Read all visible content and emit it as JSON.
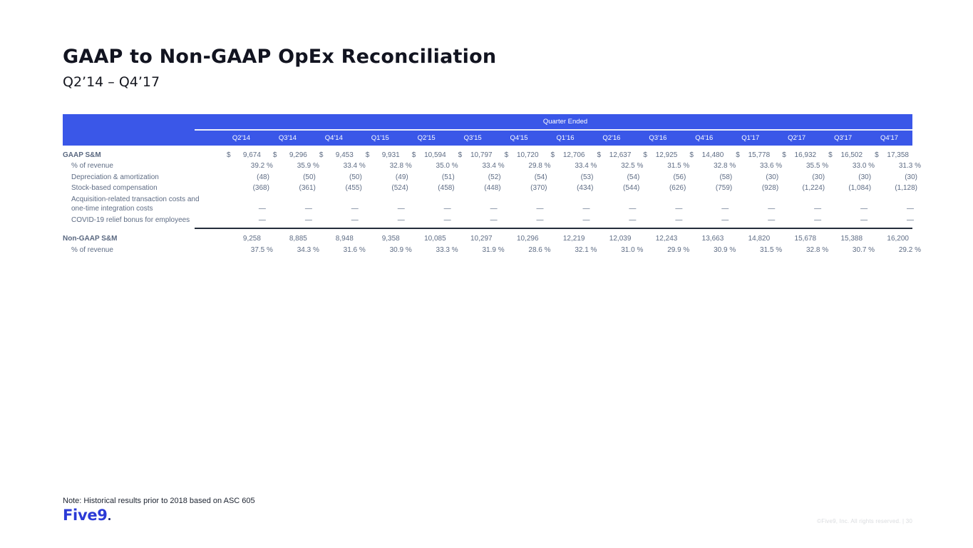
{
  "slide": {
    "title": "GAAP to Non-GAAP OpEx Reconciliation",
    "subtitle": "Q2’14 – Q4’17",
    "note": "Note: Historical results prior to 2018 based on ASC 605",
    "logo_text": "Five9",
    "footer_copyright": "©Five9, Inc. All rights reserved. | 30"
  },
  "colors": {
    "header_blue": "#3a57e8",
    "body_text_slate": "#5e6c84",
    "total_line_dark": "#242d3b",
    "logo_blue": "#2b3ad6"
  },
  "table": {
    "group_header": "Quarter Ended",
    "quarters": [
      "Q2'14",
      "Q3'14",
      "Q4'14",
      "Q1'15",
      "Q2'15",
      "Q3'15",
      "Q4'15",
      "Q1'16",
      "Q2'16",
      "Q3'16",
      "Q4'16",
      "Q1'17",
      "Q2'17",
      "Q3'17",
      "Q4'17"
    ],
    "rows": [
      {
        "label": "GAAP S&M",
        "section": true,
        "dollar": true,
        "height_class": "r-gaap",
        "values": [
          "9,674",
          "9,296",
          "9,453",
          "9,931",
          "10,594",
          "10,797",
          "10,720",
          "12,706",
          "12,637",
          "12,925",
          "14,480",
          "15,778",
          "16,932",
          "16,502",
          "17,358"
        ]
      },
      {
        "label": "% of revenue",
        "percent": true,
        "height_class": "r-std",
        "values": [
          "39.2 %",
          "35.9 %",
          "33.4 %",
          "32.8 %",
          "35.0 %",
          "33.4 %",
          "29.8 %",
          "33.4 %",
          "32.5 %",
          "31.5 %",
          "32.8 %",
          "33.6 %",
          "35.5 %",
          "33.0 %",
          "31.3 %"
        ]
      },
      {
        "label": "Depreciation & amortization",
        "height_class": "r-std",
        "values": [
          "(48)",
          "(50)",
          "(50)",
          "(49)",
          "(51)",
          "(52)",
          "(54)",
          "(53)",
          "(54)",
          "(56)",
          "(58)",
          "(30)",
          "(30)",
          "(30)",
          "(30)"
        ]
      },
      {
        "label": "Stock-based compensation",
        "height_class": "r-std",
        "values": [
          "(368)",
          "(361)",
          "(455)",
          "(524)",
          "(458)",
          "(448)",
          "(370)",
          "(434)",
          "(544)",
          "(626)",
          "(759)",
          "(928)",
          "(1,224)",
          "(1,084)",
          "(1,128)"
        ]
      },
      {
        "label": "Acquisition-related transaction costs and\none-time integration costs",
        "dash": true,
        "height_class": "r-acq",
        "values": [
          "—",
          "—",
          "—",
          "—",
          "—",
          "—",
          "—",
          "—",
          "—",
          "—",
          "—",
          "—",
          "—",
          "—",
          "—"
        ]
      },
      {
        "label": "COVID-19 relief bonus for employees",
        "dash": true,
        "height_class": "r-covid",
        "total_line_after": true,
        "values": [
          "—",
          "—",
          "—",
          "—",
          "—",
          "—",
          "—",
          "—",
          "—",
          "—",
          "—",
          "—",
          "—",
          "—",
          "—"
        ]
      },
      {
        "label": "Non-GAAP S&M",
        "section": true,
        "height_class": "r-nongaap",
        "values": [
          "9,258",
          "8,885",
          "8,948",
          "9,358",
          "10,085",
          "10,297",
          "10,296",
          "12,219",
          "12,039",
          "12,243",
          "13,663",
          "14,820",
          "15,678",
          "15,388",
          "16,200"
        ]
      },
      {
        "label": "% of revenue",
        "percent": true,
        "height_class": "r-pct2",
        "values": [
          "37.5 %",
          "34.3 %",
          "31.6 %",
          "30.9 %",
          "33.3 %",
          "31.9 %",
          "28.6 %",
          "32.1 %",
          "31.0 %",
          "29.9 %",
          "30.9 %",
          "31.5 %",
          "32.8 %",
          "30.7 %",
          "29.2 %"
        ]
      }
    ]
  }
}
